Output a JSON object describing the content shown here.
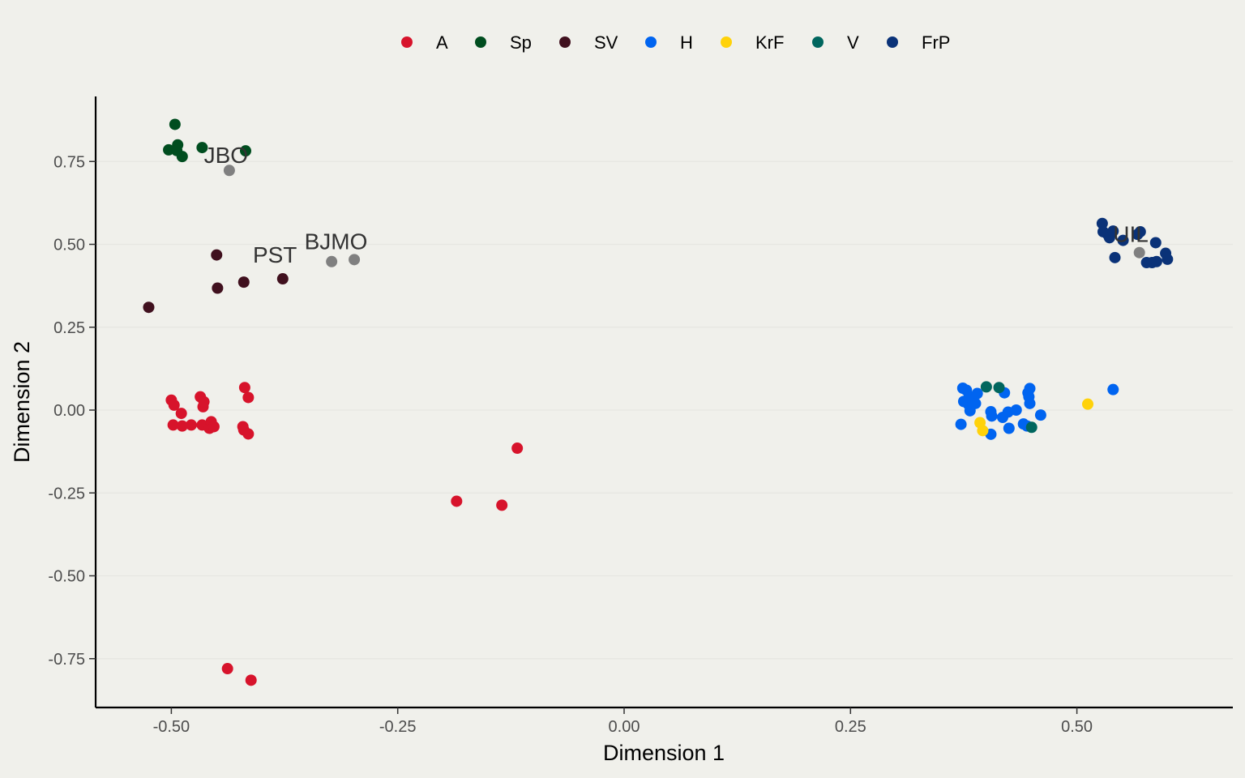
{
  "chart_data": {
    "type": "scatter",
    "xlabel": "Dimension 1",
    "ylabel": "Dimension 2",
    "xlim": [
      -0.58,
      0.67
    ],
    "ylim": [
      -0.9,
      0.94
    ],
    "xticks": [
      -0.5,
      -0.25,
      0.0,
      0.25,
      0.5
    ],
    "yticks": [
      -0.75,
      -0.5,
      -0.25,
      0.0,
      0.25,
      0.5,
      0.75
    ],
    "xtick_labels": [
      "-0.50",
      "-0.25",
      "0.00",
      "0.25",
      "0.50"
    ],
    "ytick_labels": [
      "-0.75",
      "-0.50",
      "-0.25",
      "0.00",
      "0.25",
      "0.50",
      "0.75"
    ],
    "grid": "horizontal",
    "legend_position": "top",
    "series": [
      {
        "name": "A",
        "color": "#d7132b",
        "points": [
          [
            -0.5,
            0.03
          ],
          [
            -0.497,
            0.015
          ],
          [
            -0.489,
            -0.01
          ],
          [
            -0.498,
            -0.045
          ],
          [
            -0.488,
            -0.048
          ],
          [
            -0.478,
            -0.045
          ],
          [
            -0.468,
            0.04
          ],
          [
            -0.466,
            -0.045
          ],
          [
            -0.465,
            0.01
          ],
          [
            -0.464,
            0.025
          ],
          [
            -0.458,
            -0.055
          ],
          [
            -0.456,
            -0.035
          ],
          [
            -0.453,
            -0.05
          ],
          [
            -0.421,
            -0.05
          ],
          [
            -0.42,
            -0.06
          ],
          [
            -0.419,
            0.068
          ],
          [
            -0.415,
            0.038
          ],
          [
            -0.415,
            -0.072
          ],
          [
            -0.185,
            -0.275
          ],
          [
            -0.135,
            -0.287
          ],
          [
            -0.118,
            -0.115
          ],
          [
            -0.438,
            -0.78
          ],
          [
            -0.412,
            -0.815
          ]
        ]
      },
      {
        "name": "Sp",
        "color": "#004d1f",
        "points": [
          [
            -0.496,
            0.862
          ],
          [
            -0.493,
            0.8
          ],
          [
            -0.488,
            0.765
          ],
          [
            -0.503,
            0.785
          ],
          [
            -0.494,
            0.783
          ],
          [
            -0.466,
            0.792
          ],
          [
            -0.418,
            0.782
          ]
        ]
      },
      {
        "name": "SV",
        "color": "#40101e",
        "points": [
          [
            -0.525,
            0.31
          ],
          [
            -0.45,
            0.468
          ],
          [
            -0.449,
            0.368
          ],
          [
            -0.42,
            0.386
          ],
          [
            -0.377,
            0.396
          ]
        ]
      },
      {
        "name": "H",
        "color": "#0064f0",
        "points": [
          [
            0.372,
            -0.043
          ],
          [
            0.374,
            0.066
          ],
          [
            0.375,
            0.026
          ],
          [
            0.378,
            0.06
          ],
          [
            0.38,
            0.018
          ],
          [
            0.381,
            0.04
          ],
          [
            0.382,
            0.03
          ],
          [
            0.382,
            -0.002
          ],
          [
            0.385,
            0.028
          ],
          [
            0.388,
            0.02
          ],
          [
            0.39,
            0.05
          ],
          [
            0.405,
            -0.005
          ],
          [
            0.406,
            -0.018
          ],
          [
            0.405,
            -0.073
          ],
          [
            0.418,
            -0.022
          ],
          [
            0.424,
            -0.006
          ],
          [
            0.42,
            0.052
          ],
          [
            0.425,
            -0.055
          ],
          [
            0.433,
            0.0
          ],
          [
            0.441,
            -0.042
          ],
          [
            0.445,
            -0.048
          ],
          [
            0.446,
            0.052
          ],
          [
            0.447,
            0.04
          ],
          [
            0.448,
            0.065
          ],
          [
            0.448,
            0.02
          ],
          [
            0.46,
            -0.015
          ],
          [
            0.54,
            0.062
          ]
        ]
      },
      {
        "name": "KrF",
        "color": "#ffd20a",
        "points": [
          [
            0.393,
            -0.038
          ],
          [
            0.396,
            -0.062
          ],
          [
            0.512,
            0.018
          ]
        ]
      },
      {
        "name": "V",
        "color": "#00665e",
        "points": [
          [
            0.4,
            0.07
          ],
          [
            0.414,
            0.068
          ],
          [
            0.45,
            -0.052
          ]
        ]
      },
      {
        "name": "FrP",
        "color": "#0a3278",
        "points": [
          [
            0.528,
            0.563
          ],
          [
            0.529,
            0.538
          ],
          [
            0.534,
            0.53
          ],
          [
            0.536,
            0.52
          ],
          [
            0.54,
            0.54
          ],
          [
            0.542,
            0.46
          ],
          [
            0.551,
            0.512
          ],
          [
            0.567,
            0.53
          ],
          [
            0.57,
            0.538
          ],
          [
            0.577,
            0.445
          ],
          [
            0.583,
            0.445
          ],
          [
            0.588,
            0.448
          ],
          [
            0.587,
            0.505
          ],
          [
            0.598,
            0.473
          ],
          [
            0.6,
            0.455
          ]
        ]
      },
      {
        "name": "",
        "color": "#808080",
        "points": [
          [
            -0.436,
            0.723
          ],
          [
            -0.323,
            0.448
          ],
          [
            -0.298,
            0.454
          ],
          [
            0.569,
            0.475
          ]
        ]
      }
    ],
    "annotations": [
      {
        "text": "JBO",
        "x": -0.464,
        "y": 0.77
      },
      {
        "text": "PST",
        "x": -0.41,
        "y": 0.47
      },
      {
        "text": "BJMO",
        "x": -0.353,
        "y": 0.51
      },
      {
        "text": "UIL",
        "x": 0.54,
        "y": 0.532
      }
    ]
  }
}
